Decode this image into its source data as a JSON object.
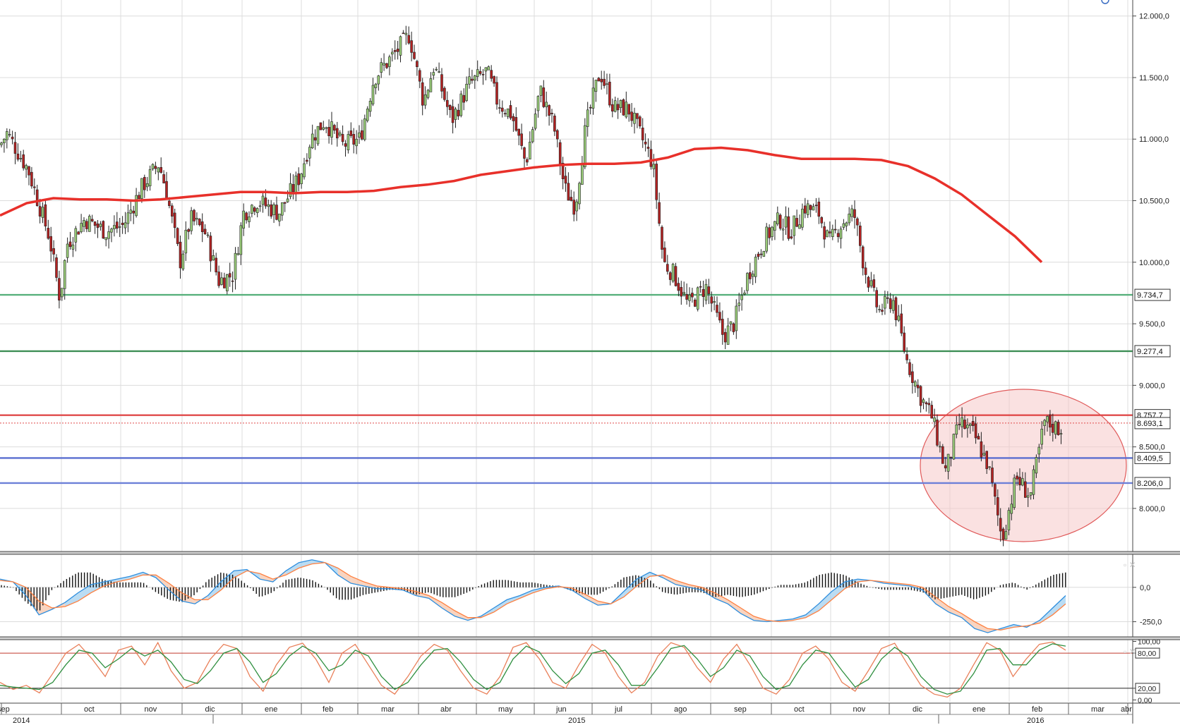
{
  "chart_data": [
    {
      "type": "candlestick",
      "title": "",
      "x_tick_labels": [
        "sep",
        "oct",
        "nov",
        "dic",
        "ene",
        "feb",
        "mar",
        "abr",
        "may",
        "jun",
        "jul",
        "ago",
        "sep",
        "oct",
        "nov",
        "dic",
        "ene",
        "feb",
        "mar",
        "abr"
      ],
      "year_labels": [
        "2014",
        "2015",
        "2016"
      ],
      "y_tick_labels": [
        "12.000,0",
        "11.500,0",
        "11.000,0",
        "10.500,0",
        "10.000,0",
        "9.500,0",
        "9.000,0",
        "8.500,0",
        "8.000,0"
      ],
      "y_ticks": [
        12000,
        11500,
        11000,
        10500,
        10000,
        9500,
        9000,
        8500,
        8000
      ],
      "ylim": [
        7650,
        12130
      ],
      "grid": true,
      "x_axis_dates": [
        "2014-09-01",
        "2016-04-05"
      ],
      "ohlc": [],
      "moving_average": {
        "name": "",
        "color": "#e8302a",
        "values": [
          10380,
          10480,
          10520,
          10510,
          10510,
          10500,
          10510,
          10530,
          10550,
          10570,
          10570,
          10560,
          10570,
          10570,
          10580,
          10610,
          10630,
          10660,
          10710,
          10740,
          10770,
          10790,
          10800,
          10800,
          10810,
          10850,
          10920,
          10930,
          10910,
          10870,
          10840,
          10840,
          10840,
          10830,
          10780,
          10680,
          10550,
          10380,
          10210,
          10000
        ]
      },
      "horizontal_levels": [
        {
          "value": 9734.7,
          "label": "9.734,7",
          "color": "#58b07c"
        },
        {
          "value": 9277.4,
          "label": "9.277,4",
          "color": "#3f8f57"
        },
        {
          "value": 8757.7,
          "label": "8.757,7",
          "color": "#e04a4a"
        },
        {
          "value": 8693.1,
          "label": "8.693,1",
          "color": "#e04a4a",
          "dotted": true
        },
        {
          "value": 8409.5,
          "label": "8.409,5",
          "color": "#5a6ed0"
        },
        {
          "value": 8206.0,
          "label": "8.206,0",
          "color": "#6d80d8"
        }
      ],
      "highlight_color": "#f6c8c8"
    },
    {
      "type": "line",
      "title": "",
      "y_tick_labels": [
        "0,0",
        "-250,0"
      ],
      "y_ticks": [
        0,
        -250
      ],
      "ylim": [
        -360,
        240
      ],
      "series": [
        {
          "name": "",
          "color": "#2e8ede",
          "values": [
            60,
            40,
            -60,
            -200,
            -160,
            -110,
            -40,
            20,
            40,
            60,
            80,
            110,
            70,
            -20,
            -100,
            -120,
            -60,
            40,
            120,
            130,
            60,
            40,
            120,
            180,
            200,
            180,
            90,
            30,
            10,
            -10,
            -10,
            -20,
            -60,
            -80,
            -150,
            -210,
            -240,
            -210,
            -150,
            -90,
            -60,
            -20,
            0,
            10,
            -20,
            -80,
            -130,
            -120,
            -30,
            60,
            110,
            70,
            20,
            0,
            -20,
            -80,
            -120,
            -190,
            -240,
            -250,
            -240,
            -230,
            -200,
            -120,
            -30,
            40,
            60,
            50,
            30,
            20,
            10,
            -20,
            -120,
            -180,
            -220,
            -300,
            -330,
            -300,
            -270,
            -290,
            -240,
            -150,
            -60
          ]
        },
        {
          "name": "",
          "color": "#ff8040",
          "values": [
            50,
            40,
            0,
            -100,
            -150,
            -140,
            -100,
            -40,
            10,
            40,
            60,
            90,
            90,
            30,
            -40,
            -90,
            -90,
            -20,
            70,
            120,
            100,
            60,
            90,
            140,
            170,
            180,
            140,
            80,
            40,
            10,
            0,
            -10,
            -30,
            -60,
            -110,
            -170,
            -220,
            -220,
            -180,
            -120,
            -80,
            -40,
            -10,
            5,
            -5,
            -50,
            -100,
            -120,
            -70,
            10,
            80,
            90,
            50,
            20,
            0,
            -40,
            -90,
            -150,
            -210,
            -240,
            -250,
            -240,
            -220,
            -170,
            -90,
            -10,
            40,
            50,
            40,
            30,
            20,
            0,
            -70,
            -140,
            -190,
            -250,
            -300,
            -310,
            -290,
            -280,
            -260,
            -200,
            -120
          ]
        }
      ]
    },
    {
      "type": "line",
      "title": "",
      "y_tick_labels": [
        "100,00",
        "80,00",
        "20,00",
        "0,00"
      ],
      "y_ticks": [
        100,
        80,
        20,
        0
      ],
      "ylim": [
        -3,
        103
      ],
      "reference_lines": [
        {
          "value": 80,
          "label": "80,00",
          "color": "#c0392b"
        },
        {
          "value": 20,
          "label": "20,00",
          "color": "#222222"
        }
      ],
      "series": [
        {
          "name": "",
          "color": "#e9805a",
          "values": [
            30,
            18,
            25,
            12,
            45,
            80,
            95,
            70,
            40,
            85,
            92,
            60,
            98,
            50,
            20,
            30,
            70,
            95,
            88,
            40,
            15,
            60,
            90,
            97,
            70,
            30,
            80,
            95,
            60,
            25,
            10,
            40,
            75,
            95,
            85,
            50,
            20,
            10,
            40,
            90,
            98,
            70,
            30,
            20,
            60,
            95,
            80,
            40,
            12,
            30,
            75,
            98,
            90,
            55,
            30,
            70,
            95,
            60,
            20,
            10,
            35,
            80,
            92,
            70,
            30,
            15,
            50,
            88,
            97,
            60,
            25,
            10,
            5,
            20,
            60,
            98,
            85,
            40,
            70,
            95,
            99,
            85
          ]
        },
        {
          "name": "",
          "color": "#2f8f3f",
          "values": [
            25,
            22,
            20,
            18,
            30,
            60,
            85,
            80,
            55,
            70,
            88,
            75,
            85,
            65,
            35,
            28,
            50,
            80,
            88,
            65,
            30,
            45,
            75,
            92,
            80,
            50,
            60,
            85,
            75,
            40,
            18,
            30,
            60,
            85,
            88,
            65,
            35,
            18,
            30,
            70,
            92,
            82,
            50,
            28,
            45,
            80,
            85,
            60,
            25,
            25,
            55,
            88,
            93,
            70,
            40,
            55,
            85,
            75,
            40,
            18,
            25,
            60,
            85,
            80,
            50,
            22,
            35,
            70,
            90,
            75,
            40,
            18,
            10,
            15,
            45,
            85,
            88,
            60,
            60,
            85,
            96,
            92
          ]
        }
      ]
    }
  ]
}
